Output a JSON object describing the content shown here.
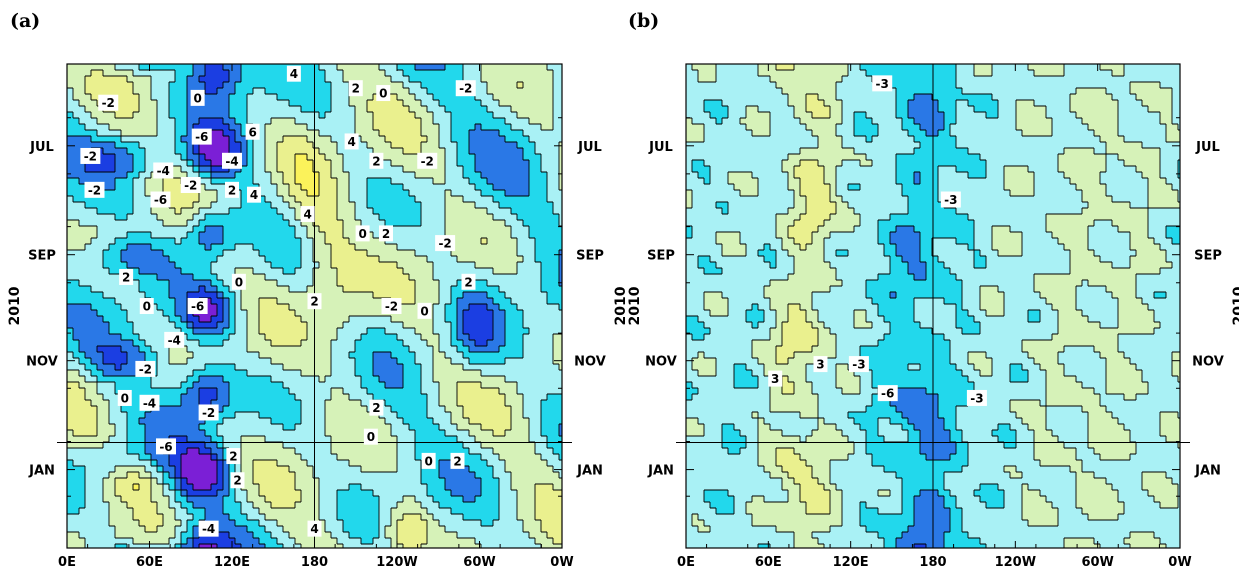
{
  "chart_data": [
    {
      "type": "heatmap",
      "panel_label": "(a)",
      "ylabel": "2010",
      "x_ticks": [
        "0E",
        "60E",
        "120E",
        "180",
        "120W",
        "60W",
        "0W"
      ],
      "y_ticks": [
        "JUL",
        "SEP",
        "NOV",
        "JAN"
      ],
      "contour_labels": [
        {
          "text": "-2",
          "lon": 30,
          "t": 0.08
        },
        {
          "text": "0",
          "lon": 95,
          "t": 0.07
        },
        {
          "text": "4",
          "lon": 165,
          "t": 0.02
        },
        {
          "text": "2",
          "lon": 210,
          "t": 0.05
        },
        {
          "text": "0",
          "lon": 230,
          "t": 0.06
        },
        {
          "text": "-2",
          "lon": 290,
          "t": 0.05
        },
        {
          "text": "-6",
          "lon": 98,
          "t": 0.15
        },
        {
          "text": "6",
          "lon": 135,
          "t": 0.14
        },
        {
          "text": "4",
          "lon": 207,
          "t": 0.16
        },
        {
          "text": "-2",
          "lon": 17,
          "t": 0.19
        },
        {
          "text": "-4",
          "lon": 70,
          "t": 0.22
        },
        {
          "text": "-4",
          "lon": 120,
          "t": 0.2
        },
        {
          "text": "2",
          "lon": 225,
          "t": 0.2
        },
        {
          "text": "-2",
          "lon": 262,
          "t": 0.2
        },
        {
          "text": "-2",
          "lon": 20,
          "t": 0.26
        },
        {
          "text": "-2",
          "lon": 90,
          "t": 0.25
        },
        {
          "text": "2",
          "lon": 120,
          "t": 0.26
        },
        {
          "text": "4",
          "lon": 136,
          "t": 0.27
        },
        {
          "text": "-6",
          "lon": 68,
          "t": 0.28
        },
        {
          "text": "4",
          "lon": 175,
          "t": 0.31
        },
        {
          "text": "0",
          "lon": 215,
          "t": 0.35
        },
        {
          "text": "2",
          "lon": 232,
          "t": 0.35
        },
        {
          "text": "-2",
          "lon": 275,
          "t": 0.37
        },
        {
          "text": "2",
          "lon": 43,
          "t": 0.44
        },
        {
          "text": "0",
          "lon": 125,
          "t": 0.45
        },
        {
          "text": "2",
          "lon": 292,
          "t": 0.45
        },
        {
          "text": "0",
          "lon": 58,
          "t": 0.5
        },
        {
          "text": "-6",
          "lon": 95,
          "t": 0.5
        },
        {
          "text": "2",
          "lon": 180,
          "t": 0.49
        },
        {
          "text": "-2",
          "lon": 236,
          "t": 0.5
        },
        {
          "text": "0",
          "lon": 260,
          "t": 0.51
        },
        {
          "text": "-4",
          "lon": 78,
          "t": 0.57
        },
        {
          "text": "-2",
          "lon": 57,
          "t": 0.63
        },
        {
          "text": "0",
          "lon": 42,
          "t": 0.69
        },
        {
          "text": "-4",
          "lon": 60,
          "t": 0.7
        },
        {
          "text": "-2",
          "lon": 103,
          "t": 0.72
        },
        {
          "text": "2",
          "lon": 225,
          "t": 0.71
        },
        {
          "text": "0",
          "lon": 221,
          "t": 0.77
        },
        {
          "text": "-6",
          "lon": 72,
          "t": 0.79
        },
        {
          "text": "2",
          "lon": 121,
          "t": 0.81
        },
        {
          "text": "0",
          "lon": 263,
          "t": 0.82
        },
        {
          "text": "2",
          "lon": 284,
          "t": 0.82
        },
        {
          "text": "2",
          "lon": 124,
          "t": 0.86
        },
        {
          "text": "-4",
          "lon": 103,
          "t": 0.96
        },
        {
          "text": "4",
          "lon": 180,
          "t": 0.96
        }
      ]
    },
    {
      "type": "heatmap",
      "panel_label": "(b)",
      "ylabel": "2010",
      "x_ticks": [
        "0E",
        "60E",
        "120E",
        "180",
        "120W",
        "60W",
        "0W"
      ],
      "y_ticks": [
        "JUL",
        "SEP",
        "NOV",
        "JAN"
      ],
      "contour_labels": [
        {
          "text": "-3",
          "lon": 143,
          "t": 0.04
        },
        {
          "text": "-3",
          "lon": 193,
          "t": 0.28
        },
        {
          "text": "3",
          "lon": 98,
          "t": 0.62
        },
        {
          "text": "-3",
          "lon": 126,
          "t": 0.62
        },
        {
          "text": "3",
          "lon": 65,
          "t": 0.65
        },
        {
          "text": "-6",
          "lon": 147,
          "t": 0.68
        },
        {
          "text": "-3",
          "lon": 212,
          "t": 0.69
        }
      ]
    }
  ]
}
